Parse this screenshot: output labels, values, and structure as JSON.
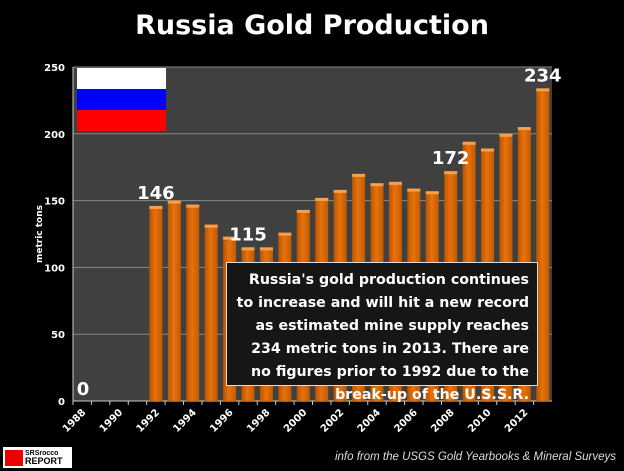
{
  "chart_data": {
    "type": "bar",
    "title": "Russia Gold Production",
    "ylabel": "metric tons",
    "xlabel": "",
    "ylim": [
      0,
      250
    ],
    "yticks": [
      0,
      50,
      100,
      150,
      200,
      250
    ],
    "categories": [
      "1988",
      "1989",
      "1990",
      "1991",
      "1992",
      "1993",
      "1994",
      "1995",
      "1996",
      "1997",
      "1998",
      "1999",
      "2000",
      "2001",
      "2002",
      "2003",
      "2004",
      "2005",
      "2006",
      "2007",
      "2008",
      "2009",
      "2010",
      "2011",
      "2012",
      "2013"
    ],
    "xtick_labels": [
      "1988",
      "1990",
      "1992",
      "1994",
      "1996",
      "1998",
      "2000",
      "2002",
      "2004",
      "2006",
      "2008",
      "2010",
      "2012"
    ],
    "values": [
      0,
      0,
      0,
      0,
      146,
      150,
      147,
      132,
      123,
      115,
      115,
      126,
      143,
      152,
      158,
      170,
      163,
      164,
      159,
      157,
      172,
      194,
      189,
      200,
      205,
      234
    ],
    "data_labels": [
      {
        "category": "1988",
        "text": "0"
      },
      {
        "category": "1992",
        "text": "146"
      },
      {
        "category": "1997",
        "text": "115"
      },
      {
        "category": "2008",
        "text": "172"
      },
      {
        "category": "2013",
        "text": "234"
      }
    ],
    "grid": true,
    "colors": {
      "bar": "#e8720c",
      "plot_bg": "#404040",
      "grid": "#888888"
    }
  },
  "annotation": "Russia's gold production continues to increase and will hit a new record as estimated mine supply reaches 234 metric tons in 2013.  There are no figures prior to 1992 due to the break-up of the U.S.S.R.",
  "flag": {
    "colors": [
      "#ffffff",
      "#0000ff",
      "#ff0000"
    ]
  },
  "logo": {
    "line1": "SRSrocco",
    "line2": "REPORT"
  },
  "source": "info from the USGS  Gold  Yearbooks & Mineral Surveys"
}
